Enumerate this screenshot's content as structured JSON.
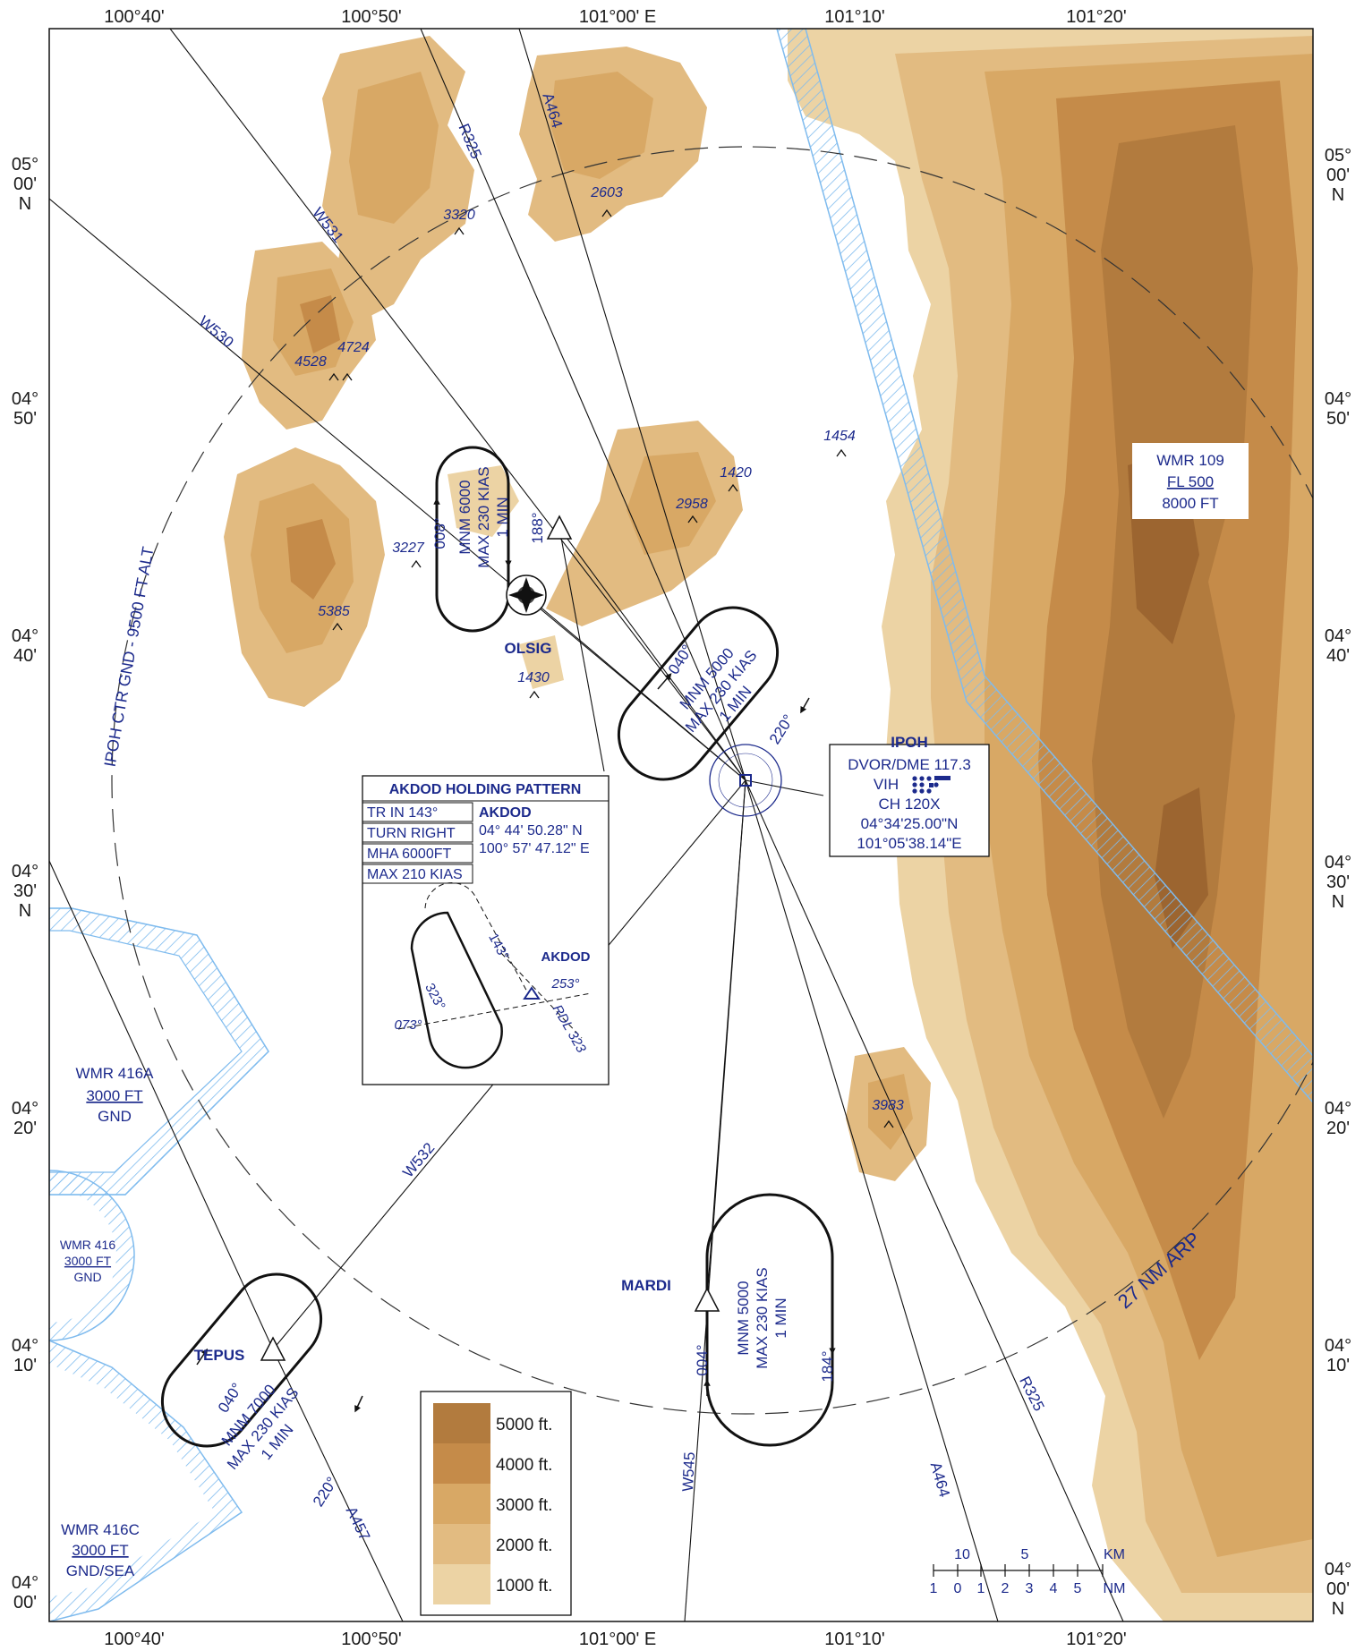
{
  "lon_labels": [
    "100°40'",
    "100°50'",
    "101°00' E",
    "101°10'",
    "101°20'"
  ],
  "lat_labels": [
    {
      "deg": "05°",
      "min": "00'",
      "hemi": "N"
    },
    {
      "deg": "04°",
      "min": "50'",
      "hemi": ""
    },
    {
      "deg": "04°",
      "min": "40'",
      "hemi": ""
    },
    {
      "deg": "04°",
      "min": "30'",
      "hemi": "N"
    },
    {
      "deg": "04°",
      "min": "20'",
      "hemi": ""
    },
    {
      "deg": "04°",
      "min": "10'",
      "hemi": ""
    },
    {
      "deg": "04°",
      "min": "00'",
      "hemi": "N"
    }
  ],
  "airways": {
    "r325": "R325",
    "a464": "A464",
    "w531": "W531",
    "w530": "W530",
    "w532": "W532",
    "a457": "A457",
    "w545": "W545"
  },
  "ctr_label": "IPOH CTR GND - 9500 FT ALT",
  "arp_label": "27 NM ARP",
  "spot_heights": [
    "3320",
    "2603",
    "4528",
    "4724",
    "1454",
    "1420",
    "2958",
    "3227",
    "5385",
    "1430",
    "3983"
  ],
  "restricted": {
    "wmr109": {
      "name": "WMR 109",
      "upper": "FL 500",
      "lower": "8000 FT"
    },
    "wmr416a": {
      "name": "WMR 416A",
      "upper": "3000 FT",
      "lower": "GND"
    },
    "wmr416": {
      "name": "WMR 416",
      "upper": "3000 FT",
      "lower": "GND"
    },
    "wmr416c": {
      "name": "WMR 416C",
      "upper": "3000 FT",
      "lower": "GND/SEA"
    }
  },
  "holds": {
    "olsig": {
      "fix": "OLSIG",
      "inbound": "188°",
      "outbound": "008°",
      "l1": "MNM 6000",
      "l2": "MAX 230 KIAS",
      "l3": "1 MIN"
    },
    "ipoh": {
      "inbound": "040°",
      "outbound": "220°",
      "l1": "MNM 5000",
      "l2": "MAX 230 KIAS",
      "l3": "1 MIN"
    },
    "tepus": {
      "fix": "TEPUS",
      "inbound": "040°",
      "outbound": "220°",
      "l1": "MNM 7000",
      "l2": "MAX 230 KIAS",
      "l3": "1 MIN"
    },
    "mardi": {
      "fix": "MARDI",
      "inbound": "004°",
      "outbound": "184°",
      "l1": "MNM 5000",
      "l2": "MAX 230 KIAS",
      "l3": "1 MIN"
    }
  },
  "navaid": {
    "name": "IPOH",
    "type_freq": "DVOR/DME 117.3",
    "ident": "VIH",
    "channel": "CH 120X",
    "lat": "04°34'25.00\"N",
    "lon": "101°05'38.14\"E"
  },
  "akdod_box": {
    "title": "AKDOD HOLDING PATTERN",
    "rows": [
      "TR IN 143°",
      "TURN RIGHT",
      "MHA 6000FT",
      "MAX 210 KIAS"
    ],
    "fix": "AKDOD",
    "lat": "04° 44' 50.28\" N",
    "lon": "100° 57' 47.12\" E",
    "diagram": {
      "inbound": "143°",
      "outbound": "323°",
      "r253": "253°",
      "r073": "073°",
      "radial": "RDL 323",
      "fix": "AKDOD"
    }
  },
  "legend": [
    "5000 ft.",
    "4000 ft.",
    "3000 ft.",
    "2000 ft.",
    "1000 ft."
  ],
  "legend_colors": [
    "#b27b3e",
    "#c58b49",
    "#d8a865",
    "#e2bb81",
    "#ecd3a4"
  ],
  "scale": {
    "km_ticks": [
      "10",
      "5"
    ],
    "nm_ticks": [
      "1",
      "0",
      "1",
      "2",
      "3",
      "4",
      "5"
    ],
    "km": "KM",
    "nm": "NM"
  },
  "colors": {
    "airspace": "#7fbbee",
    "label": "#1c2a8c",
    "terrain_low": "#ecd3a4",
    "terrain_high": "#a86f34"
  }
}
